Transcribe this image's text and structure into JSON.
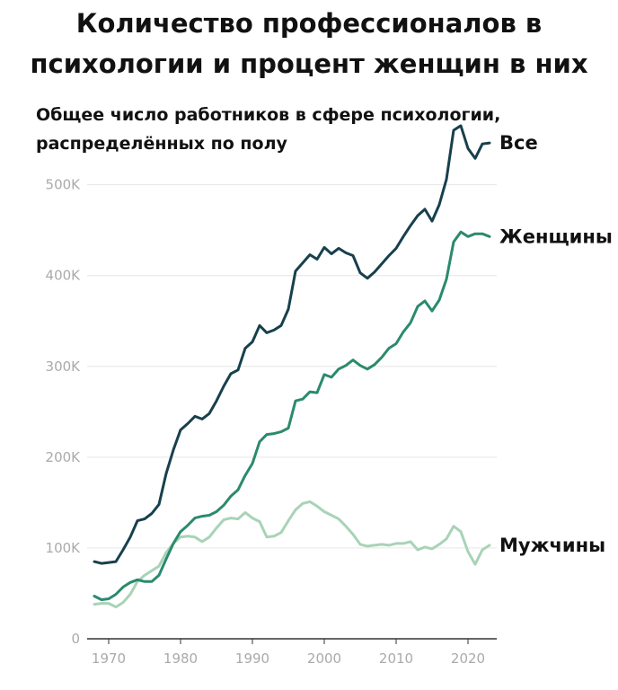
{
  "page": {
    "title_line1": "Количество профессионалов в",
    "title_line2": "психологии и процент женщин в них",
    "subtitle_line1": "Общее число работников в сфере психологии,",
    "subtitle_line2": "распределённых по полу"
  },
  "chart_data": {
    "type": "line",
    "xlim": [
      1967,
      2024
    ],
    "ylim": [
      0,
      560000
    ],
    "y_ticks": [
      {
        "value": 0,
        "label": "0"
      },
      {
        "value": 100000,
        "label": "100K"
      },
      {
        "value": 200000,
        "label": "200K"
      },
      {
        "value": 300000,
        "label": "300K"
      },
      {
        "value": 400000,
        "label": "400K"
      },
      {
        "value": 500000,
        "label": "500K"
      }
    ],
    "x_ticks": [
      {
        "value": 1970,
        "label": "1970"
      },
      {
        "value": 1980,
        "label": "1980"
      },
      {
        "value": 1990,
        "label": "1990"
      },
      {
        "value": 2000,
        "label": "2000"
      },
      {
        "value": 2010,
        "label": "2010"
      },
      {
        "value": 2020,
        "label": "2020"
      }
    ],
    "grid": true,
    "series": [
      {
        "name": "Все",
        "color": "#17404d",
        "x": [
          1968,
          1969,
          1970,
          1971,
          1972,
          1973,
          1974,
          1975,
          1976,
          1977,
          1978,
          1979,
          1980,
          1981,
          1982,
          1983,
          1984,
          1985,
          1986,
          1987,
          1988,
          1989,
          1990,
          1991,
          1992,
          1993,
          1994,
          1995,
          1996,
          1997,
          1998,
          1999,
          2000,
          2001,
          2002,
          2003,
          2004,
          2005,
          2006,
          2007,
          2008,
          2009,
          2010,
          2011,
          2012,
          2013,
          2014,
          2015,
          2016,
          2017,
          2018,
          2019,
          2020,
          2021,
          2022,
          2023
        ],
        "y": [
          85000,
          83000,
          84000,
          85000,
          98000,
          112000,
          130000,
          132000,
          138000,
          148000,
          182000,
          208000,
          230000,
          237000,
          245000,
          242000,
          248000,
          262000,
          278000,
          292000,
          296000,
          320000,
          327000,
          345000,
          337000,
          340000,
          345000,
          363000,
          405000,
          414000,
          423000,
          418000,
          431000,
          424000,
          430000,
          425000,
          422000,
          403000,
          397000,
          404000,
          413000,
          422000,
          430000,
          443000,
          455000,
          466000,
          473000,
          460000,
          478000,
          506000,
          560000,
          565000,
          540000,
          529000,
          545000,
          546000
        ]
      },
      {
        "name": "Женщины",
        "color": "#2b8a6e",
        "x": [
          1968,
          1969,
          1970,
          1971,
          1972,
          1973,
          1974,
          1975,
          1976,
          1977,
          1978,
          1979,
          1980,
          1981,
          1982,
          1983,
          1984,
          1985,
          1986,
          1987,
          1988,
          1989,
          1990,
          1991,
          1992,
          1993,
          1994,
          1995,
          1996,
          1997,
          1998,
          1999,
          2000,
          2001,
          2002,
          2003,
          2004,
          2005,
          2006,
          2007,
          2008,
          2009,
          2010,
          2011,
          2012,
          2013,
          2014,
          2015,
          2016,
          2017,
          2018,
          2019,
          2020,
          2021,
          2022,
          2023
        ],
        "y": [
          47000,
          43000,
          44000,
          49000,
          57000,
          62000,
          65000,
          63000,
          63000,
          70000,
          88000,
          105000,
          118000,
          125000,
          133000,
          135000,
          136000,
          140000,
          147000,
          157000,
          164000,
          180000,
          193000,
          217000,
          225000,
          226000,
          228000,
          232000,
          262000,
          264000,
          272000,
          271000,
          291000,
          288000,
          297000,
          301000,
          307000,
          301000,
          297000,
          302000,
          310000,
          320000,
          325000,
          338000,
          348000,
          366000,
          372000,
          361000,
          373000,
          396000,
          437000,
          448000,
          443000,
          446000,
          446000,
          443000
        ]
      },
      {
        "name": "Мужчины",
        "color": "#a8d3b7",
        "x": [
          1968,
          1969,
          1970,
          1971,
          1972,
          1973,
          1974,
          1975,
          1976,
          1977,
          1978,
          1979,
          1980,
          1981,
          1982,
          1983,
          1984,
          1985,
          1986,
          1987,
          1988,
          1989,
          1990,
          1991,
          1992,
          1993,
          1994,
          1995,
          1996,
          1997,
          1998,
          1999,
          2000,
          2001,
          2002,
          2003,
          2004,
          2005,
          2006,
          2007,
          2008,
          2009,
          2010,
          2011,
          2012,
          2013,
          2014,
          2015,
          2016,
          2017,
          2018,
          2019,
          2020,
          2021,
          2022,
          2023
        ],
        "y": [
          38000,
          39000,
          39000,
          35000,
          40000,
          49000,
          63000,
          70000,
          75000,
          80000,
          95000,
          105000,
          112000,
          113000,
          112000,
          107000,
          112000,
          122000,
          131000,
          133000,
          132000,
          139000,
          133000,
          129000,
          112000,
          113000,
          117000,
          130000,
          142000,
          149000,
          151000,
          146000,
          140000,
          136000,
          132000,
          124000,
          115000,
          104000,
          102000,
          103000,
          104000,
          103000,
          105000,
          105000,
          107000,
          98000,
          101000,
          99000,
          104000,
          110000,
          124000,
          118000,
          96000,
          82000,
          98000,
          103000
        ]
      }
    ]
  }
}
